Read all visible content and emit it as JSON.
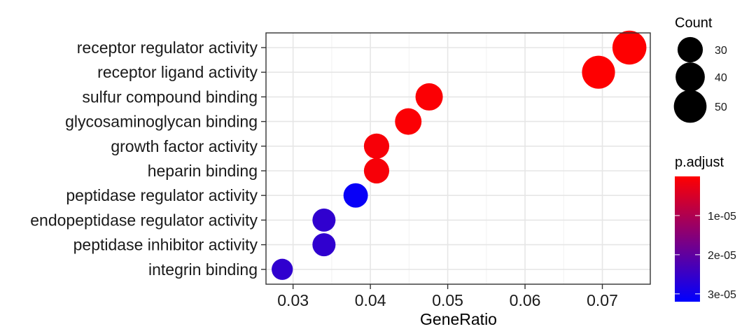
{
  "chart_data": {
    "type": "scatter",
    "title": "",
    "xlabel": "GeneRatio",
    "ylabel": "",
    "xlim": [
      0.0265,
      0.0762
    ],
    "x_ticks": [
      0.03,
      0.04,
      0.05,
      0.06,
      0.07
    ],
    "x_tick_labels": [
      "0.03",
      "0.04",
      "0.05",
      "0.06",
      "0.07"
    ],
    "categories": [
      "receptor regulator activity",
      "receptor ligand activity",
      "sulfur compound binding",
      "glycosaminoglycan binding",
      "growth factor activity",
      "heparin binding",
      "peptidase regulator activity",
      "endopeptidase regulator activity",
      "peptidase inhibitor activity",
      "integrin binding"
    ],
    "points": [
      {
        "term": "receptor regulator activity",
        "gene_ratio": 0.0735,
        "count": 54,
        "p_adjust": 1e-07
      },
      {
        "term": "receptor ligand activity",
        "gene_ratio": 0.0695,
        "count": 51,
        "p_adjust": 1e-07
      },
      {
        "term": "sulfur compound binding",
        "gene_ratio": 0.0476,
        "count": 35,
        "p_adjust": 5e-07
      },
      {
        "term": "glycosaminoglycan binding",
        "gene_ratio": 0.0449,
        "count": 33,
        "p_adjust": 5e-07
      },
      {
        "term": "growth factor activity",
        "gene_ratio": 0.0408,
        "count": 30,
        "p_adjust": 1e-06
      },
      {
        "term": "heparin binding",
        "gene_ratio": 0.0408,
        "count": 30,
        "p_adjust": 1e-06
      },
      {
        "term": "peptidase regulator activity",
        "gene_ratio": 0.0381,
        "count": 28,
        "p_adjust": 3.1e-05
      },
      {
        "term": "endopeptidase regulator activity",
        "gene_ratio": 0.034,
        "count": 25,
        "p_adjust": 2.6e-05
      },
      {
        "term": "peptidase inhibitor activity",
        "gene_ratio": 0.034,
        "count": 25,
        "p_adjust": 2.6e-05
      },
      {
        "term": "integrin binding",
        "gene_ratio": 0.0286,
        "count": 21,
        "p_adjust": 2.6e-05
      }
    ],
    "grid": true,
    "size_legend": {
      "title": "Count",
      "breaks": [
        30,
        40,
        50
      ],
      "labels": [
        "30",
        "40",
        "50"
      ]
    },
    "color_legend": {
      "title": "p.adjust",
      "low_color": "#ff0000",
      "high_color": "#0000ff",
      "range": [
        0,
        3.2e-05
      ],
      "breaks": [
        1e-05,
        2e-05,
        3e-05
      ],
      "labels": [
        "1e-05",
        "2e-05",
        "3e-05"
      ]
    },
    "legend_position": "right"
  }
}
